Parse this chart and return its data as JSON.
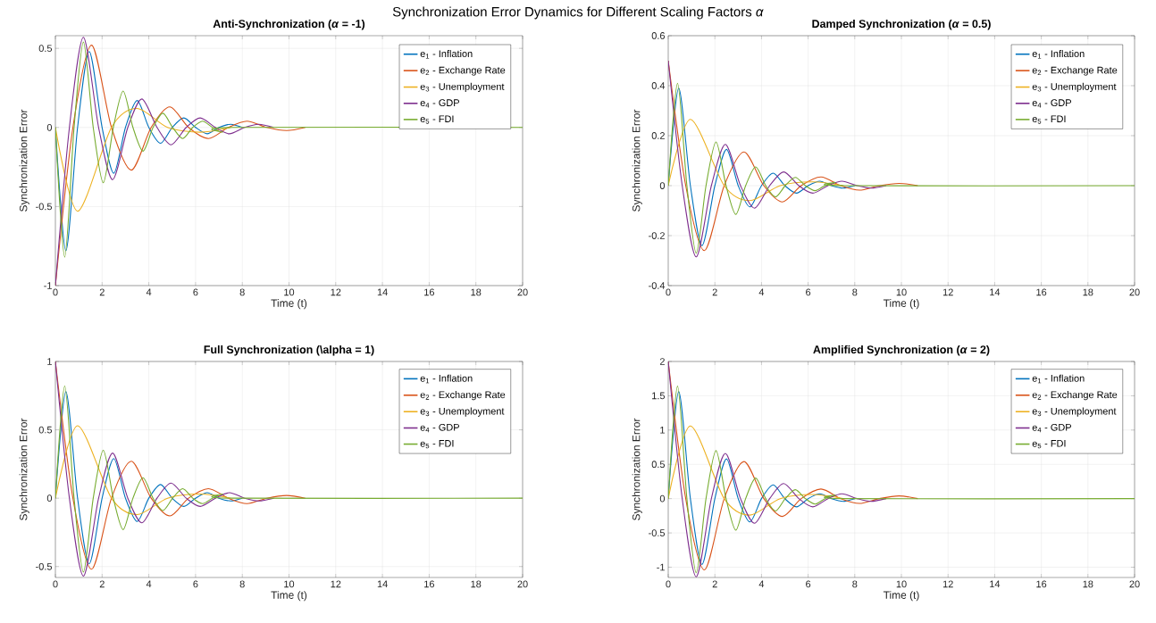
{
  "chart_data": [
    {
      "type": "line",
      "title": "Anti-Synchronization (*α* = -1)",
      "xlabel": "Time (t)",
      "ylabel": "Synchronization Error",
      "annotations": [
        "Synchronization Error Dynamics for Different Scaling Factors *α*"
      ],
      "xlim": [
        0,
        20
      ],
      "xticks": [
        0,
        2,
        4,
        6,
        8,
        10,
        12,
        14,
        16,
        18,
        20
      ],
      "ylim": [
        -1,
        0.58
      ],
      "yticks": [
        -1,
        -0.5,
        0,
        0.5
      ],
      "grid": true,
      "legend": "top right",
      "series": [
        {
          "name": "e$_{1}$ - Inflation",
          "color": "#0072bd",
          "x": [
            0,
            0.45,
            0.95,
            1.45,
            2.0,
            2.5,
            3.0,
            3.5,
            4.0,
            4.5,
            5.0,
            5.5,
            6.0,
            6.5,
            7.0,
            7.5,
            8.0
          ],
          "values": [
            0,
            -0.78,
            0,
            0.48,
            0,
            -0.29,
            0,
            0.17,
            0,
            -0.1,
            0,
            0.06,
            0,
            -0.04,
            0,
            0.02,
            0
          ]
        },
        {
          "name": "e$_{2}$ - Exchange Rate",
          "color": "#d95319",
          "x": [
            0,
            0.75,
            1.55,
            2.4,
            3.25,
            4.1,
            4.9,
            5.7,
            6.55,
            7.4,
            8.2,
            9.05,
            9.9,
            10.7
          ],
          "values": [
            -1,
            0,
            0.52,
            0,
            -0.27,
            0,
            0.13,
            0,
            -0.07,
            0,
            0.04,
            0,
            -0.02,
            0
          ]
        },
        {
          "name": "e$_{3}$ - Unemployment",
          "color": "#edb120",
          "x": [
            0,
            0.95,
            2.4,
            3.5,
            4.8,
            6.2,
            7.5
          ],
          "values": [
            0,
            -0.53,
            0,
            0.12,
            0,
            -0.03,
            0
          ]
        },
        {
          "name": "e$_{4}$ - GDP",
          "color": "#7e2f8e",
          "x": [
            0,
            0.6,
            1.2,
            1.85,
            2.45,
            3.1,
            3.7,
            4.35,
            4.95,
            5.6,
            6.2,
            6.85,
            7.45,
            8.1,
            8.7,
            9.35
          ],
          "values": [
            -1,
            0,
            0.57,
            0,
            -0.33,
            0,
            0.18,
            0,
            -0.11,
            0,
            0.06,
            0,
            -0.04,
            0,
            0.02,
            0
          ]
        },
        {
          "name": "e$_{5}$ - FDI",
          "color": "#77ac30",
          "x": [
            0,
            0.4,
            0.8,
            1.2,
            1.62,
            2.05,
            2.48,
            2.9,
            3.32,
            3.75,
            4.18,
            4.6,
            5.02,
            5.45,
            5.88,
            6.3,
            6.72,
            7.15,
            7.58,
            20
          ],
          "values": [
            0,
            -0.82,
            0,
            0.54,
            0,
            -0.35,
            0,
            0.23,
            0,
            -0.15,
            0,
            0.09,
            0,
            -0.07,
            0,
            0.04,
            0,
            -0.03,
            0,
            0
          ]
        }
      ]
    },
    {
      "type": "line",
      "title": "Damped Synchronization (*α* = 0.5)",
      "xlabel": "Time (t)",
      "ylabel": "Synchronization Error",
      "xlim": [
        0,
        20
      ],
      "xticks": [
        0,
        2,
        4,
        6,
        8,
        10,
        12,
        14,
        16,
        18,
        20
      ],
      "ylim": [
        -0.4,
        0.6
      ],
      "yticks": [
        -0.4,
        -0.2,
        0,
        0.2,
        0.4,
        0.6
      ],
      "grid": true,
      "legend": "top right",
      "series": [
        {
          "name": "e$_{1}$ - Inflation",
          "color": "#0072bd",
          "x": [
            0,
            0.45,
            0.95,
            1.45,
            2.0,
            2.5,
            3.0,
            3.5,
            4.0,
            4.5,
            5.0,
            5.5,
            6.0,
            6.5,
            7.0,
            7.5,
            8.0
          ],
          "values": [
            0,
            0.39,
            0,
            -0.24,
            0,
            0.145,
            0,
            -0.085,
            0,
            0.05,
            0,
            -0.03,
            0,
            0.018,
            0,
            -0.01,
            0
          ]
        },
        {
          "name": "e$_{2}$ - Exchange Rate",
          "color": "#d95319",
          "x": [
            0,
            0.75,
            1.55,
            2.4,
            3.25,
            4.1,
            4.9,
            5.7,
            6.55,
            7.4,
            8.2,
            9.05,
            9.9,
            10.7
          ],
          "values": [
            0.5,
            0,
            -0.26,
            0,
            0.135,
            0,
            -0.065,
            0,
            0.035,
            0,
            -0.018,
            0,
            0.009,
            0
          ]
        },
        {
          "name": "e$_{3}$ - Unemployment",
          "color": "#edb120",
          "x": [
            0,
            0.95,
            2.4,
            3.5,
            4.8,
            6.2,
            7.5
          ],
          "values": [
            0,
            0.265,
            0,
            -0.06,
            0,
            0.015,
            0
          ]
        },
        {
          "name": "e$_{4}$ - GDP",
          "color": "#7e2f8e",
          "x": [
            0,
            0.6,
            1.2,
            1.85,
            2.45,
            3.1,
            3.7,
            4.35,
            4.95,
            5.6,
            6.2,
            6.85,
            7.45,
            8.1,
            8.7,
            9.35
          ],
          "values": [
            0.5,
            0,
            -0.285,
            0,
            0.165,
            0,
            -0.09,
            0,
            0.055,
            0,
            -0.03,
            0,
            0.018,
            0,
            -0.01,
            0
          ]
        },
        {
          "name": "e$_{5}$ - FDI",
          "color": "#77ac30",
          "x": [
            0,
            0.4,
            0.8,
            1.2,
            1.62,
            2.05,
            2.48,
            2.9,
            3.32,
            3.75,
            4.18,
            4.6,
            5.02,
            5.45,
            5.88,
            6.3,
            6.72,
            7.15,
            7.58,
            20
          ],
          "values": [
            0,
            0.41,
            0,
            -0.27,
            0,
            0.175,
            0,
            -0.115,
            0,
            0.075,
            0,
            -0.045,
            0,
            0.033,
            0,
            -0.02,
            0,
            0.013,
            0,
            0
          ]
        }
      ]
    },
    {
      "type": "line",
      "title": "Full Synchronization (\\alpha = 1)",
      "xlabel": "Time (t)",
      "ylabel": "Synchronization Error",
      "xlim": [
        0,
        20
      ],
      "xticks": [
        0,
        2,
        4,
        6,
        8,
        10,
        12,
        14,
        16,
        18,
        20
      ],
      "ylim": [
        -0.58,
        1
      ],
      "yticks": [
        -0.5,
        0,
        0.5,
        1
      ],
      "grid": true,
      "legend": "top right",
      "series": [
        {
          "name": "e$_{1}$ - Inflation",
          "color": "#0072bd",
          "x": [
            0,
            0.45,
            0.95,
            1.45,
            2.0,
            2.5,
            3.0,
            3.5,
            4.0,
            4.5,
            5.0,
            5.5,
            6.0,
            6.5,
            7.0,
            7.5,
            8.0
          ],
          "values": [
            0,
            0.78,
            0,
            -0.48,
            0,
            0.29,
            0,
            -0.17,
            0,
            0.1,
            0,
            -0.06,
            0,
            0.04,
            0,
            -0.02,
            0
          ]
        },
        {
          "name": "e$_{2}$ - Exchange Rate",
          "color": "#d95319",
          "x": [
            0,
            0.75,
            1.55,
            2.4,
            3.25,
            4.1,
            4.9,
            5.7,
            6.55,
            7.4,
            8.2,
            9.05,
            9.9,
            10.7
          ],
          "values": [
            1,
            0,
            -0.52,
            0,
            0.27,
            0,
            -0.13,
            0,
            0.07,
            0,
            -0.04,
            0,
            0.02,
            0
          ]
        },
        {
          "name": "e$_{3}$ - Unemployment",
          "color": "#edb120",
          "x": [
            0,
            0.95,
            2.4,
            3.5,
            4.8,
            6.2,
            7.5
          ],
          "values": [
            0,
            0.53,
            0,
            -0.12,
            0,
            0.03,
            0
          ]
        },
        {
          "name": "e$_{4}$ - GDP",
          "color": "#7e2f8e",
          "x": [
            0,
            0.6,
            1.2,
            1.85,
            2.45,
            3.1,
            3.7,
            4.35,
            4.95,
            5.6,
            6.2,
            6.85,
            7.45,
            8.1,
            8.7,
            9.35
          ],
          "values": [
            1,
            0,
            -0.57,
            0,
            0.33,
            0,
            -0.18,
            0,
            0.11,
            0,
            -0.06,
            0,
            0.04,
            0,
            -0.02,
            0
          ]
        },
        {
          "name": "e$_{5}$ - FDI",
          "color": "#77ac30",
          "x": [
            0,
            0.4,
            0.8,
            1.2,
            1.62,
            2.05,
            2.48,
            2.9,
            3.32,
            3.75,
            4.18,
            4.6,
            5.02,
            5.45,
            5.88,
            6.3,
            6.72,
            7.15,
            7.58,
            20
          ],
          "values": [
            0,
            0.82,
            0,
            -0.54,
            0,
            0.35,
            0,
            -0.23,
            0,
            0.15,
            0,
            -0.09,
            0,
            0.07,
            0,
            -0.04,
            0,
            0.03,
            0,
            0
          ]
        }
      ]
    },
    {
      "type": "line",
      "title": "Amplified Synchronization (*α* = 2)",
      "xlabel": "Time (t)",
      "ylabel": "Synchronization Error",
      "xlim": [
        0,
        20
      ],
      "xticks": [
        0,
        2,
        4,
        6,
        8,
        10,
        12,
        14,
        16,
        18,
        20
      ],
      "ylim": [
        -1.15,
        2
      ],
      "yticks": [
        -1,
        -0.5,
        0,
        0.5,
        1,
        1.5,
        2
      ],
      "grid": true,
      "legend": "top right",
      "series": [
        {
          "name": "e$_{1}$ - Inflation",
          "color": "#0072bd",
          "x": [
            0,
            0.45,
            0.95,
            1.45,
            2.0,
            2.5,
            3.0,
            3.5,
            4.0,
            4.5,
            5.0,
            5.5,
            6.0,
            6.5,
            7.0,
            7.5,
            8.0
          ],
          "values": [
            0,
            1.56,
            0,
            -0.96,
            0,
            0.58,
            0,
            -0.34,
            0,
            0.2,
            0,
            -0.12,
            0,
            0.07,
            0,
            -0.04,
            0
          ]
        },
        {
          "name": "e$_{2}$ - Exchange Rate",
          "color": "#d95319",
          "x": [
            0,
            0.75,
            1.55,
            2.4,
            3.25,
            4.1,
            4.9,
            5.7,
            6.55,
            7.4,
            8.2,
            9.05,
            9.9,
            10.7
          ],
          "values": [
            2,
            0,
            -1.04,
            0,
            0.54,
            0,
            -0.26,
            0,
            0.14,
            0,
            -0.07,
            0,
            0.04,
            0
          ]
        },
        {
          "name": "e$_{3}$ - Unemployment",
          "color": "#edb120",
          "x": [
            0,
            0.95,
            2.4,
            3.5,
            4.8,
            6.2,
            7.5
          ],
          "values": [
            0,
            1.06,
            0,
            -0.24,
            0,
            0.06,
            0
          ]
        },
        {
          "name": "e$_{4}$ - GDP",
          "color": "#7e2f8e",
          "x": [
            0,
            0.6,
            1.2,
            1.85,
            2.45,
            3.1,
            3.7,
            4.35,
            4.95,
            5.6,
            6.2,
            6.85,
            7.45,
            8.1,
            8.7,
            9.35
          ],
          "values": [
            2,
            0,
            -1.14,
            0,
            0.66,
            0,
            -0.36,
            0,
            0.22,
            0,
            -0.12,
            0,
            0.07,
            0,
            -0.04,
            0
          ]
        },
        {
          "name": "e$_{5}$ - FDI",
          "color": "#77ac30",
          "x": [
            0,
            0.4,
            0.8,
            1.2,
            1.62,
            2.05,
            2.48,
            2.9,
            3.32,
            3.75,
            4.18,
            4.6,
            5.02,
            5.45,
            5.88,
            6.3,
            6.72,
            7.15,
            7.58,
            20
          ],
          "values": [
            0,
            1.64,
            0,
            -1.08,
            0,
            0.7,
            0,
            -0.46,
            0,
            0.3,
            0,
            -0.18,
            0,
            0.13,
            0,
            -0.08,
            0,
            0.05,
            0,
            0
          ]
        }
      ]
    }
  ]
}
